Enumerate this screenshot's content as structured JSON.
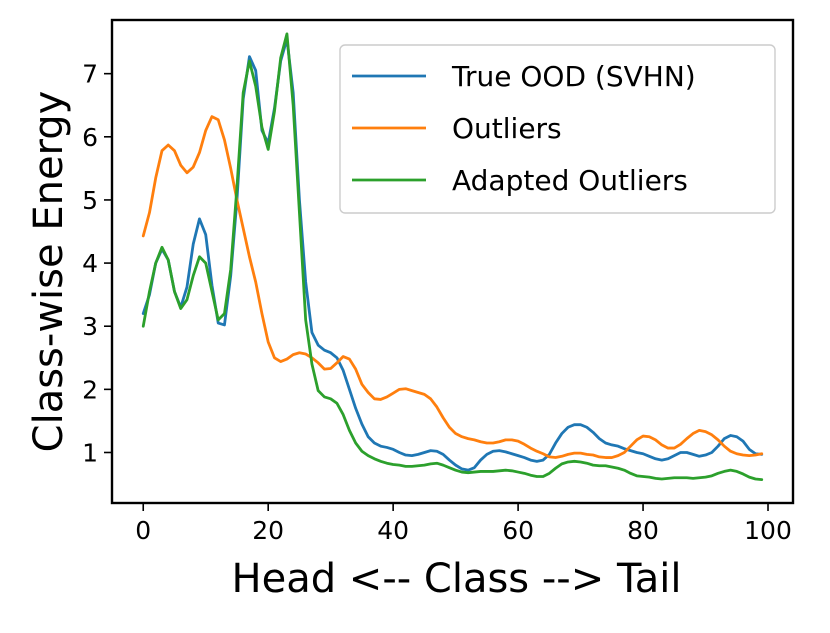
{
  "chart_data": {
    "type": "line",
    "title": "",
    "xlabel": "Head <-- Class --> Tail",
    "ylabel": "Class-wise Energy",
    "xlim": [
      -5,
      104
    ],
    "ylim": [
      0.2,
      7.85
    ],
    "xticks": [
      0,
      20,
      40,
      60,
      80,
      100
    ],
    "yticks": [
      1,
      2,
      3,
      4,
      5,
      6,
      7
    ],
    "grid": false,
    "legend_position": "top-right",
    "series": [
      {
        "name": "True OOD (SVHN)",
        "color": "#1f77b4",
        "points": [
          [
            0,
            3.2
          ],
          [
            1,
            3.5
          ],
          [
            2,
            4.0
          ],
          [
            3,
            4.22
          ],
          [
            4,
            4.05
          ],
          [
            5,
            3.55
          ],
          [
            6,
            3.3
          ],
          [
            7,
            3.62
          ],
          [
            8,
            4.3
          ],
          [
            9,
            4.7
          ],
          [
            10,
            4.45
          ],
          [
            11,
            3.65
          ],
          [
            12,
            3.05
          ],
          [
            13,
            3.02
          ],
          [
            14,
            3.8
          ],
          [
            15,
            5.0
          ],
          [
            16,
            6.6
          ],
          [
            17,
            7.27
          ],
          [
            18,
            7.05
          ],
          [
            19,
            6.1
          ],
          [
            20,
            5.9
          ],
          [
            21,
            6.45
          ],
          [
            22,
            7.2
          ],
          [
            23,
            7.55
          ],
          [
            24,
            6.7
          ],
          [
            25,
            5.0
          ],
          [
            26,
            3.7
          ],
          [
            27,
            2.9
          ],
          [
            28,
            2.7
          ],
          [
            29,
            2.62
          ],
          [
            30,
            2.58
          ],
          [
            31,
            2.5
          ],
          [
            32,
            2.3
          ],
          [
            33,
            2.0
          ],
          [
            34,
            1.7
          ],
          [
            35,
            1.45
          ],
          [
            36,
            1.25
          ],
          [
            37,
            1.15
          ],
          [
            38,
            1.1
          ],
          [
            39,
            1.08
          ],
          [
            40,
            1.05
          ],
          [
            41,
            1.0
          ],
          [
            42,
            0.96
          ],
          [
            43,
            0.95
          ],
          [
            44,
            0.97
          ],
          [
            45,
            1.0
          ],
          [
            46,
            1.03
          ],
          [
            47,
            1.02
          ],
          [
            48,
            0.97
          ],
          [
            49,
            0.88
          ],
          [
            50,
            0.8
          ],
          [
            51,
            0.74
          ],
          [
            52,
            0.72
          ],
          [
            53,
            0.76
          ],
          [
            54,
            0.88
          ],
          [
            55,
            0.97
          ],
          [
            56,
            1.02
          ],
          [
            57,
            1.03
          ],
          [
            58,
            1.01
          ],
          [
            59,
            0.98
          ],
          [
            60,
            0.95
          ],
          [
            61,
            0.92
          ],
          [
            62,
            0.88
          ],
          [
            63,
            0.86
          ],
          [
            64,
            0.88
          ],
          [
            65,
            0.97
          ],
          [
            66,
            1.15
          ],
          [
            67,
            1.3
          ],
          [
            68,
            1.4
          ],
          [
            69,
            1.44
          ],
          [
            70,
            1.44
          ],
          [
            71,
            1.4
          ],
          [
            72,
            1.32
          ],
          [
            73,
            1.22
          ],
          [
            74,
            1.15
          ],
          [
            75,
            1.12
          ],
          [
            76,
            1.1
          ],
          [
            77,
            1.06
          ],
          [
            78,
            1.03
          ],
          [
            79,
            1.0
          ],
          [
            80,
            0.98
          ],
          [
            81,
            0.94
          ],
          [
            82,
            0.9
          ],
          [
            83,
            0.88
          ],
          [
            84,
            0.9
          ],
          [
            85,
            0.95
          ],
          [
            86,
            1.0
          ],
          [
            87,
            1.0
          ],
          [
            88,
            0.97
          ],
          [
            89,
            0.94
          ],
          [
            90,
            0.96
          ],
          [
            91,
            1.0
          ],
          [
            92,
            1.1
          ],
          [
            93,
            1.22
          ],
          [
            94,
            1.27
          ],
          [
            95,
            1.25
          ],
          [
            96,
            1.18
          ],
          [
            97,
            1.05
          ],
          [
            98,
            0.98
          ],
          [
            99,
            0.97
          ]
        ]
      },
      {
        "name": "Outliers",
        "color": "#ff7f0e",
        "points": [
          [
            0,
            4.43
          ],
          [
            1,
            4.8
          ],
          [
            2,
            5.35
          ],
          [
            3,
            5.78
          ],
          [
            4,
            5.87
          ],
          [
            5,
            5.78
          ],
          [
            6,
            5.55
          ],
          [
            7,
            5.43
          ],
          [
            8,
            5.52
          ],
          [
            9,
            5.75
          ],
          [
            10,
            6.1
          ],
          [
            11,
            6.32
          ],
          [
            12,
            6.27
          ],
          [
            13,
            5.95
          ],
          [
            14,
            5.5
          ],
          [
            15,
            5.0
          ],
          [
            16,
            4.55
          ],
          [
            17,
            4.1
          ],
          [
            18,
            3.7
          ],
          [
            19,
            3.2
          ],
          [
            20,
            2.75
          ],
          [
            21,
            2.5
          ],
          [
            22,
            2.44
          ],
          [
            23,
            2.48
          ],
          [
            24,
            2.55
          ],
          [
            25,
            2.58
          ],
          [
            26,
            2.56
          ],
          [
            27,
            2.5
          ],
          [
            28,
            2.42
          ],
          [
            29,
            2.32
          ],
          [
            30,
            2.33
          ],
          [
            31,
            2.42
          ],
          [
            32,
            2.52
          ],
          [
            33,
            2.48
          ],
          [
            34,
            2.32
          ],
          [
            35,
            2.08
          ],
          [
            36,
            1.95
          ],
          [
            37,
            1.85
          ],
          [
            38,
            1.84
          ],
          [
            39,
            1.88
          ],
          [
            40,
            1.94
          ],
          [
            41,
            2.0
          ],
          [
            42,
            2.01
          ],
          [
            43,
            1.98
          ],
          [
            44,
            1.95
          ],
          [
            45,
            1.92
          ],
          [
            46,
            1.85
          ],
          [
            47,
            1.72
          ],
          [
            48,
            1.55
          ],
          [
            49,
            1.4
          ],
          [
            50,
            1.3
          ],
          [
            51,
            1.25
          ],
          [
            52,
            1.22
          ],
          [
            53,
            1.2
          ],
          [
            54,
            1.17
          ],
          [
            55,
            1.15
          ],
          [
            56,
            1.15
          ],
          [
            57,
            1.17
          ],
          [
            58,
            1.2
          ],
          [
            59,
            1.2
          ],
          [
            60,
            1.18
          ],
          [
            61,
            1.13
          ],
          [
            62,
            1.07
          ],
          [
            63,
            1.02
          ],
          [
            64,
            0.98
          ],
          [
            65,
            0.93
          ],
          [
            66,
            0.92
          ],
          [
            67,
            0.94
          ],
          [
            68,
            0.97
          ],
          [
            69,
            0.99
          ],
          [
            70,
            0.99
          ],
          [
            71,
            0.97
          ],
          [
            72,
            0.96
          ],
          [
            73,
            0.93
          ],
          [
            74,
            0.92
          ],
          [
            75,
            0.92
          ],
          [
            76,
            0.95
          ],
          [
            77,
            1.0
          ],
          [
            78,
            1.1
          ],
          [
            79,
            1.2
          ],
          [
            80,
            1.26
          ],
          [
            81,
            1.25
          ],
          [
            82,
            1.2
          ],
          [
            83,
            1.12
          ],
          [
            84,
            1.07
          ],
          [
            85,
            1.07
          ],
          [
            86,
            1.13
          ],
          [
            87,
            1.22
          ],
          [
            88,
            1.3
          ],
          [
            89,
            1.35
          ],
          [
            90,
            1.33
          ],
          [
            91,
            1.28
          ],
          [
            92,
            1.2
          ],
          [
            93,
            1.1
          ],
          [
            94,
            1.02
          ],
          [
            95,
            0.98
          ],
          [
            96,
            0.96
          ],
          [
            97,
            0.95
          ],
          [
            98,
            0.96
          ],
          [
            99,
            0.98
          ]
        ]
      },
      {
        "name": "Adapted Outliers",
        "color": "#2ca02c",
        "points": [
          [
            0,
            3.0
          ],
          [
            1,
            3.55
          ],
          [
            2,
            4.0
          ],
          [
            3,
            4.25
          ],
          [
            4,
            4.05
          ],
          [
            5,
            3.55
          ],
          [
            6,
            3.28
          ],
          [
            7,
            3.42
          ],
          [
            8,
            3.8
          ],
          [
            9,
            4.1
          ],
          [
            10,
            4.0
          ],
          [
            11,
            3.55
          ],
          [
            12,
            3.1
          ],
          [
            13,
            3.2
          ],
          [
            14,
            3.9
          ],
          [
            15,
            5.2
          ],
          [
            16,
            6.7
          ],
          [
            17,
            7.2
          ],
          [
            18,
            6.8
          ],
          [
            19,
            6.15
          ],
          [
            20,
            5.8
          ],
          [
            21,
            6.4
          ],
          [
            22,
            7.25
          ],
          [
            23,
            7.63
          ],
          [
            24,
            6.5
          ],
          [
            25,
            4.8
          ],
          [
            26,
            3.1
          ],
          [
            27,
            2.4
          ],
          [
            28,
            1.98
          ],
          [
            29,
            1.88
          ],
          [
            30,
            1.85
          ],
          [
            31,
            1.78
          ],
          [
            32,
            1.6
          ],
          [
            33,
            1.35
          ],
          [
            34,
            1.15
          ],
          [
            35,
            1.02
          ],
          [
            36,
            0.95
          ],
          [
            37,
            0.9
          ],
          [
            38,
            0.86
          ],
          [
            39,
            0.83
          ],
          [
            40,
            0.81
          ],
          [
            41,
            0.8
          ],
          [
            42,
            0.78
          ],
          [
            43,
            0.78
          ],
          [
            44,
            0.79
          ],
          [
            45,
            0.8
          ],
          [
            46,
            0.82
          ],
          [
            47,
            0.83
          ],
          [
            48,
            0.8
          ],
          [
            49,
            0.76
          ],
          [
            50,
            0.72
          ],
          [
            51,
            0.69
          ],
          [
            52,
            0.68
          ],
          [
            53,
            0.69
          ],
          [
            54,
            0.7
          ],
          [
            55,
            0.7
          ],
          [
            56,
            0.7
          ],
          [
            57,
            0.71
          ],
          [
            58,
            0.72
          ],
          [
            59,
            0.71
          ],
          [
            60,
            0.69
          ],
          [
            61,
            0.67
          ],
          [
            62,
            0.64
          ],
          [
            63,
            0.62
          ],
          [
            64,
            0.62
          ],
          [
            65,
            0.67
          ],
          [
            66,
            0.75
          ],
          [
            67,
            0.82
          ],
          [
            68,
            0.85
          ],
          [
            69,
            0.86
          ],
          [
            70,
            0.85
          ],
          [
            71,
            0.83
          ],
          [
            72,
            0.8
          ],
          [
            73,
            0.79
          ],
          [
            74,
            0.79
          ],
          [
            75,
            0.77
          ],
          [
            76,
            0.75
          ],
          [
            77,
            0.72
          ],
          [
            78,
            0.67
          ],
          [
            79,
            0.63
          ],
          [
            80,
            0.62
          ],
          [
            81,
            0.61
          ],
          [
            82,
            0.59
          ],
          [
            83,
            0.58
          ],
          [
            84,
            0.59
          ],
          [
            85,
            0.6
          ],
          [
            86,
            0.6
          ],
          [
            87,
            0.6
          ],
          [
            88,
            0.59
          ],
          [
            89,
            0.6
          ],
          [
            90,
            0.61
          ],
          [
            91,
            0.63
          ],
          [
            92,
            0.67
          ],
          [
            93,
            0.7
          ],
          [
            94,
            0.72
          ],
          [
            95,
            0.7
          ],
          [
            96,
            0.66
          ],
          [
            97,
            0.61
          ],
          [
            98,
            0.58
          ],
          [
            99,
            0.57
          ]
        ]
      }
    ]
  }
}
